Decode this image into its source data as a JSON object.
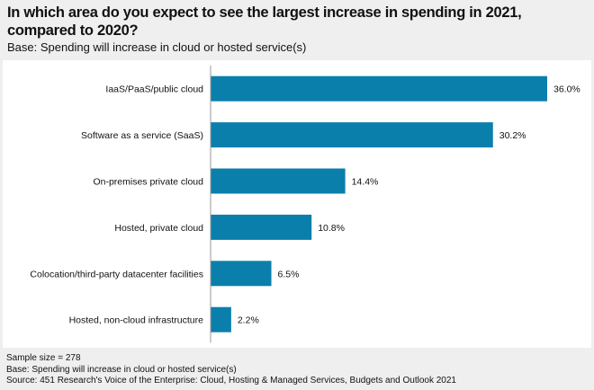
{
  "title": "In which area do you expect to see the largest increase in spending in 2021, compared to 2020?",
  "subtitle": "Base: Spending will increase in cloud or hosted service(s)",
  "chart_data": {
    "type": "bar",
    "orientation": "horizontal",
    "categories": [
      "IaaS/PaaS/public cloud",
      "Software as a service (SaaS)",
      "On-premises private cloud",
      "Hosted, private cloud",
      "Colocation/third-party datacenter facilities",
      "Hosted, non-cloud infrastructure"
    ],
    "values": [
      36.0,
      30.2,
      14.4,
      10.8,
      6.5,
      2.2
    ],
    "labels": [
      "36.0%",
      "30.2%",
      "14.4%",
      "10.8%",
      "6.5%",
      "2.2%"
    ],
    "xlim": [
      0,
      36
    ],
    "grid": false,
    "color": "#0b7fab"
  },
  "footer": {
    "sample": "Sample size = 278",
    "base": "Base: Spending will increase in cloud or hosted service(s)",
    "source": "Source: 451 Research's Voice of the Enterprise: Cloud, Hosting & Managed Services, Budgets and Outlook 2021"
  }
}
